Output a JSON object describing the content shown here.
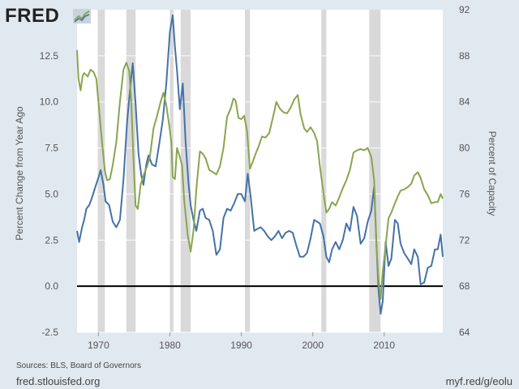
{
  "header": {
    "brand": "FRED",
    "logo_icon": "trend-line-icon"
  },
  "footer": {
    "sources": "Sources: BLS, Board of Governors",
    "site": "fred.stlouisfed.org",
    "short_url": "myf.red/g/eolu"
  },
  "colors": {
    "background": "#e1e9f0",
    "plot_background": "#ffffff",
    "recession": "#d9d9d9",
    "series_left": "#4572a7",
    "series_right": "#89a54e",
    "zero_line": "#000000"
  },
  "chart_data": {
    "type": "line",
    "grid": true,
    "left_axis": {
      "label": "Percent Change from Year Ago",
      "ylim": [
        -2.5,
        15.0
      ],
      "ticks": [
        "-2.5",
        "0.0",
        "2.5",
        "5.0",
        "7.5",
        "10.0",
        "12.5"
      ]
    },
    "right_axis": {
      "label": "Percent of Capacity",
      "ylim": [
        64,
        92
      ],
      "ticks": [
        "64",
        "68",
        "72",
        "76",
        "80",
        "84",
        "88",
        "92"
      ]
    },
    "x_axis": {
      "xlim": [
        1967.0,
        2018.2
      ],
      "ticks": [
        "1970",
        "1980",
        "1990",
        "2000",
        "2010"
      ]
    },
    "recessions": [
      [
        1969.9,
        1970.9
      ],
      [
        1973.9,
        1975.2
      ],
      [
        1980.0,
        1980.5
      ],
      [
        1981.5,
        1982.9
      ],
      [
        1990.5,
        1991.2
      ],
      [
        2001.2,
        2001.9
      ],
      [
        2007.9,
        2009.5
      ]
    ],
    "series": [
      {
        "axis": "left",
        "points": [
          [
            1967.0,
            3.0
          ],
          [
            1967.3,
            2.4
          ],
          [
            1967.7,
            3.2
          ],
          [
            1968.0,
            3.6
          ],
          [
            1968.3,
            4.2
          ],
          [
            1968.7,
            4.4
          ],
          [
            1969.0,
            4.7
          ],
          [
            1969.5,
            5.3
          ],
          [
            1970.0,
            5.9
          ],
          [
            1970.3,
            6.3
          ],
          [
            1970.7,
            5.5
          ],
          [
            1971.0,
            4.6
          ],
          [
            1971.5,
            4.4
          ],
          [
            1972.0,
            3.5
          ],
          [
            1972.5,
            3.2
          ],
          [
            1973.0,
            3.6
          ],
          [
            1973.5,
            5.8
          ],
          [
            1974.0,
            8.9
          ],
          [
            1974.5,
            11.0
          ],
          [
            1974.8,
            12.1
          ],
          [
            1975.2,
            9.9
          ],
          [
            1975.6,
            7.2
          ],
          [
            1976.0,
            6.0
          ],
          [
            1976.3,
            5.5
          ],
          [
            1976.7,
            6.6
          ],
          [
            1977.0,
            7.1
          ],
          [
            1977.5,
            6.6
          ],
          [
            1978.0,
            6.5
          ],
          [
            1978.5,
            7.7
          ],
          [
            1979.0,
            9.0
          ],
          [
            1979.5,
            11.0
          ],
          [
            1980.0,
            13.8
          ],
          [
            1980.4,
            14.7
          ],
          [
            1980.7,
            13.0
          ],
          [
            1981.0,
            11.7
          ],
          [
            1981.4,
            9.6
          ],
          [
            1981.8,
            11.0
          ],
          [
            1982.2,
            7.8
          ],
          [
            1982.6,
            5.6
          ],
          [
            1982.9,
            4.4
          ],
          [
            1983.3,
            3.6
          ],
          [
            1983.7,
            3.0
          ],
          [
            1984.2,
            4.1
          ],
          [
            1984.6,
            4.2
          ],
          [
            1985.0,
            3.7
          ],
          [
            1985.5,
            3.6
          ],
          [
            1986.0,
            3.0
          ],
          [
            1986.5,
            1.7
          ],
          [
            1987.0,
            2.0
          ],
          [
            1987.5,
            3.7
          ],
          [
            1988.0,
            4.2
          ],
          [
            1988.5,
            4.1
          ],
          [
            1989.0,
            4.5
          ],
          [
            1989.5,
            5.0
          ],
          [
            1990.0,
            5.0
          ],
          [
            1990.5,
            4.6
          ],
          [
            1990.9,
            6.1
          ],
          [
            1991.3,
            4.9
          ],
          [
            1991.8,
            3.0
          ],
          [
            1992.2,
            3.1
          ],
          [
            1992.7,
            3.2
          ],
          [
            1993.2,
            3.0
          ],
          [
            1993.7,
            2.7
          ],
          [
            1994.2,
            2.5
          ],
          [
            1994.7,
            2.7
          ],
          [
            1995.2,
            3.0
          ],
          [
            1995.7,
            2.6
          ],
          [
            1996.2,
            2.9
          ],
          [
            1996.7,
            3.0
          ],
          [
            1997.2,
            2.9
          ],
          [
            1997.7,
            2.2
          ],
          [
            1998.2,
            1.6
          ],
          [
            1998.7,
            1.6
          ],
          [
            1999.2,
            1.8
          ],
          [
            1999.7,
            2.6
          ],
          [
            2000.2,
            3.6
          ],
          [
            2000.6,
            3.5
          ],
          [
            2001.0,
            3.4
          ],
          [
            2001.5,
            2.7
          ],
          [
            2001.9,
            1.6
          ],
          [
            2002.3,
            1.3
          ],
          [
            2002.7,
            2.0
          ],
          [
            2003.2,
            2.4
          ],
          [
            2003.7,
            2.0
          ],
          [
            2004.2,
            2.5
          ],
          [
            2004.7,
            3.4
          ],
          [
            2005.2,
            3.0
          ],
          [
            2005.7,
            4.3
          ],
          [
            2006.2,
            3.8
          ],
          [
            2006.7,
            2.3
          ],
          [
            2007.2,
            2.6
          ],
          [
            2007.7,
            3.5
          ],
          [
            2008.2,
            4.1
          ],
          [
            2008.6,
            5.4
          ],
          [
            2008.9,
            2.4
          ],
          [
            2009.2,
            -0.2
          ],
          [
            2009.5,
            -1.5
          ],
          [
            2009.8,
            -0.8
          ],
          [
            2010.2,
            2.4
          ],
          [
            2010.6,
            1.1
          ],
          [
            2011.0,
            1.5
          ],
          [
            2011.5,
            3.6
          ],
          [
            2011.9,
            3.4
          ],
          [
            2012.3,
            2.3
          ],
          [
            2012.8,
            1.8
          ],
          [
            2013.3,
            1.5
          ],
          [
            2013.8,
            1.2
          ],
          [
            2014.2,
            2.0
          ],
          [
            2014.7,
            1.6
          ],
          [
            2015.1,
            0.1
          ],
          [
            2015.6,
            0.2
          ],
          [
            2016.1,
            1.0
          ],
          [
            2016.6,
            1.1
          ],
          [
            2017.1,
            2.0
          ],
          [
            2017.5,
            2.0
          ],
          [
            2017.9,
            2.8
          ],
          [
            2018.2,
            1.6
          ]
        ]
      },
      {
        "axis": "right",
        "points": [
          [
            1967.0,
            88.5
          ],
          [
            1967.2,
            86.0
          ],
          [
            1967.5,
            85.0
          ],
          [
            1967.8,
            86.3
          ],
          [
            1968.0,
            86.5
          ],
          [
            1968.5,
            86.2
          ],
          [
            1968.9,
            86.8
          ],
          [
            1969.3,
            86.6
          ],
          [
            1969.7,
            86.0
          ],
          [
            1970.0,
            84.0
          ],
          [
            1970.5,
            80.5
          ],
          [
            1970.9,
            78.0
          ],
          [
            1971.2,
            77.2
          ],
          [
            1971.6,
            77.3
          ],
          [
            1972.0,
            78.5
          ],
          [
            1972.5,
            80.5
          ],
          [
            1973.0,
            84.0
          ],
          [
            1973.5,
            86.8
          ],
          [
            1973.9,
            87.4
          ],
          [
            1974.3,
            86.7
          ],
          [
            1974.6,
            84.0
          ],
          [
            1974.9,
            79.0
          ],
          [
            1975.2,
            75.0
          ],
          [
            1975.5,
            74.7
          ],
          [
            1975.9,
            76.8
          ],
          [
            1976.3,
            77.6
          ],
          [
            1976.8,
            78.4
          ],
          [
            1977.2,
            79.2
          ],
          [
            1977.7,
            81.7
          ],
          [
            1978.2,
            82.8
          ],
          [
            1978.7,
            84.0
          ],
          [
            1979.1,
            84.8
          ],
          [
            1979.5,
            83.7
          ],
          [
            1979.9,
            82.0
          ],
          [
            1980.2,
            80.5
          ],
          [
            1980.4,
            77.5
          ],
          [
            1980.7,
            77.3
          ],
          [
            1981.0,
            80.0
          ],
          [
            1981.4,
            79.2
          ],
          [
            1981.7,
            78.5
          ],
          [
            1982.0,
            75.5
          ],
          [
            1982.5,
            72.4
          ],
          [
            1982.9,
            71.0
          ],
          [
            1983.3,
            72.8
          ],
          [
            1983.7,
            76.4
          ],
          [
            1984.2,
            79.7
          ],
          [
            1984.6,
            79.5
          ],
          [
            1985.0,
            79.1
          ],
          [
            1985.5,
            78.1
          ],
          [
            1986.0,
            77.9
          ],
          [
            1986.5,
            77.7
          ],
          [
            1987.0,
            78.4
          ],
          [
            1987.5,
            80.0
          ],
          [
            1988.0,
            82.7
          ],
          [
            1988.5,
            83.4
          ],
          [
            1988.9,
            84.3
          ],
          [
            1989.2,
            84.1
          ],
          [
            1989.6,
            82.6
          ],
          [
            1990.0,
            82.5
          ],
          [
            1990.4,
            82.8
          ],
          [
            1990.8,
            81.5
          ],
          [
            1991.2,
            78.2
          ],
          [
            1991.6,
            78.8
          ],
          [
            1992.0,
            79.5
          ],
          [
            1992.4,
            80.1
          ],
          [
            1992.9,
            81.0
          ],
          [
            1993.4,
            80.9
          ],
          [
            1993.9,
            81.3
          ],
          [
            1994.4,
            82.6
          ],
          [
            1994.9,
            84.0
          ],
          [
            1995.4,
            83.4
          ],
          [
            1995.9,
            83.1
          ],
          [
            1996.4,
            83.0
          ],
          [
            1996.9,
            83.5
          ],
          [
            1997.4,
            84.2
          ],
          [
            1997.9,
            84.6
          ],
          [
            1998.3,
            82.9
          ],
          [
            1998.8,
            81.7
          ],
          [
            1999.2,
            81.4
          ],
          [
            1999.7,
            81.8
          ],
          [
            2000.2,
            81.3
          ],
          [
            2000.6,
            80.6
          ],
          [
            2001.0,
            78.4
          ],
          [
            2001.5,
            76.1
          ],
          [
            2001.9,
            74.4
          ],
          [
            2002.3,
            74.7
          ],
          [
            2002.7,
            75.3
          ],
          [
            2003.2,
            75.0
          ],
          [
            2003.7,
            75.7
          ],
          [
            2004.2,
            76.5
          ],
          [
            2004.7,
            77.2
          ],
          [
            2005.2,
            78.1
          ],
          [
            2005.7,
            79.6
          ],
          [
            2006.2,
            79.8
          ],
          [
            2006.7,
            79.9
          ],
          [
            2007.2,
            79.8
          ],
          [
            2007.7,
            80.0
          ],
          [
            2008.2,
            79.2
          ],
          [
            2008.6,
            77.2
          ],
          [
            2008.9,
            71.7
          ],
          [
            2009.2,
            68.6
          ],
          [
            2009.5,
            66.9
          ],
          [
            2009.8,
            69.3
          ],
          [
            2010.2,
            71.5
          ],
          [
            2010.6,
            73.9
          ],
          [
            2011.0,
            74.4
          ],
          [
            2011.5,
            75.2
          ],
          [
            2011.9,
            75.8
          ],
          [
            2012.3,
            76.3
          ],
          [
            2012.8,
            76.4
          ],
          [
            2013.3,
            76.6
          ],
          [
            2013.8,
            76.9
          ],
          [
            2014.2,
            77.6
          ],
          [
            2014.7,
            77.9
          ],
          [
            2015.1,
            77.4
          ],
          [
            2015.6,
            76.4
          ],
          [
            2016.1,
            75.9
          ],
          [
            2016.6,
            75.2
          ],
          [
            2017.1,
            75.3
          ],
          [
            2017.5,
            75.3
          ],
          [
            2017.9,
            76.0
          ],
          [
            2018.2,
            75.6
          ]
        ]
      }
    ]
  }
}
